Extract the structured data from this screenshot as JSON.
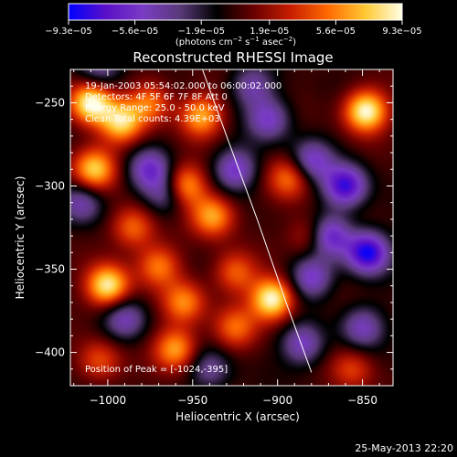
{
  "chart_data": {
    "type": "heatmap",
    "title": "Reconstructed RHESSI Image",
    "xlabel": "Heliocentric X (arcsec)",
    "ylabel": "Heliocentric Y (arcsec)",
    "xlim": [
      -1022,
      -832
    ],
    "ylim": [
      -420,
      -230
    ],
    "x_ticks": [
      -1000,
      -950,
      -900,
      -850
    ],
    "y_ticks": [
      -250,
      -300,
      -350,
      -400
    ],
    "x_tick_labels": [
      "−1000",
      "−950",
      "−900",
      "−850"
    ],
    "y_tick_labels": [
      "−250",
      "−300",
      "−350",
      "−400"
    ],
    "colorbar": {
      "tick_values": [
        -9.3e-05,
        -5.6e-05,
        -1.9e-05,
        1.9e-05,
        5.6e-05,
        9.3e-05
      ],
      "tick_labels": [
        "−9.3e−05",
        "−5.6e−05",
        "−1.9e−05",
        "1.9e−05",
        "5.6e−05",
        "9.3e−05"
      ],
      "units_prefix": "(photons cm",
      "units_sup1": "−2",
      "units_mid": " s",
      "units_sup2": "−1",
      "units_mid2": " asec",
      "units_sup3": "−2",
      "units_suffix": ")",
      "colors": [
        "#0000ff",
        "#5a0fc8",
        "#7a3cc4",
        "#5a3a7a",
        "#000000",
        "#6a0000",
        "#c81e00",
        "#ff6a00",
        "#ffc832",
        "#ffffe6"
      ]
    },
    "annotations": {
      "line1": "19-Jan-2003 05:54:02.000 to 06:00:02.000",
      "line2": "Detectors: 4F 5F 6F 7F 8F  Att 0",
      "line3": "Energy Range: 25.0 - 50.0 keV",
      "line4": "Clean     Total counts: 4.39E+03",
      "peak": "Position of Peak = [-1024,-395]"
    },
    "limb_points": [
      [
        -946,
        -225
      ],
      [
        -930,
        -270
      ],
      [
        -912,
        -320
      ],
      [
        -895,
        -370
      ],
      [
        -880,
        -412
      ]
    ],
    "sources": [
      {
        "x": -1010,
        "y": -250,
        "amp": 1.0
      },
      {
        "x": -992,
        "y": -262,
        "amp": 0.8
      },
      {
        "x": -975,
        "y": -250,
        "amp": 0.55
      },
      {
        "x": -1008,
        "y": -290,
        "amp": 0.8
      },
      {
        "x": -945,
        "y": -258,
        "amp": 0.7
      },
      {
        "x": -955,
        "y": -300,
        "amp": 0.75
      },
      {
        "x": -938,
        "y": -318,
        "amp": 0.7
      },
      {
        "x": -985,
        "y": -325,
        "amp": 0.55
      },
      {
        "x": -1000,
        "y": -360,
        "amp": 0.95
      },
      {
        "x": -970,
        "y": -348,
        "amp": 0.55
      },
      {
        "x": -955,
        "y": -370,
        "amp": 0.6
      },
      {
        "x": -925,
        "y": -352,
        "amp": 0.5
      },
      {
        "x": -903,
        "y": -368,
        "amp": 1.0
      },
      {
        "x": -960,
        "y": -398,
        "amp": 0.7
      },
      {
        "x": -925,
        "y": -385,
        "amp": 0.5
      },
      {
        "x": -1005,
        "y": -405,
        "amp": 0.45
      },
      {
        "x": -893,
        "y": -295,
        "amp": 0.55
      },
      {
        "x": -880,
        "y": -330,
        "amp": 0.45
      },
      {
        "x": -848,
        "y": -255,
        "amp": 1.0
      },
      {
        "x": -856,
        "y": -410,
        "amp": 0.4
      },
      {
        "x": -1015,
        "y": -310,
        "amp": -0.5
      },
      {
        "x": -975,
        "y": -290,
        "amp": -0.6
      },
      {
        "x": -965,
        "y": -305,
        "amp": -0.5
      },
      {
        "x": -925,
        "y": -290,
        "amp": -0.6
      },
      {
        "x": -905,
        "y": -260,
        "amp": -0.55
      },
      {
        "x": -880,
        "y": -285,
        "amp": -0.6
      },
      {
        "x": -860,
        "y": -300,
        "amp": -0.85
      },
      {
        "x": -870,
        "y": -330,
        "amp": -0.8
      },
      {
        "x": -847,
        "y": -340,
        "amp": -0.95
      },
      {
        "x": -880,
        "y": -355,
        "amp": -0.6
      },
      {
        "x": -885,
        "y": -395,
        "amp": -0.55
      },
      {
        "x": -850,
        "y": -385,
        "amp": -0.5
      },
      {
        "x": -990,
        "y": -380,
        "amp": -0.5
      },
      {
        "x": -940,
        "y": -410,
        "amp": -0.4
      },
      {
        "x": -1005,
        "y": -230,
        "amp": -0.4
      },
      {
        "x": -915,
        "y": -240,
        "amp": -0.45
      }
    ]
  },
  "footer_timestamp": "25-May-2013 22:20"
}
